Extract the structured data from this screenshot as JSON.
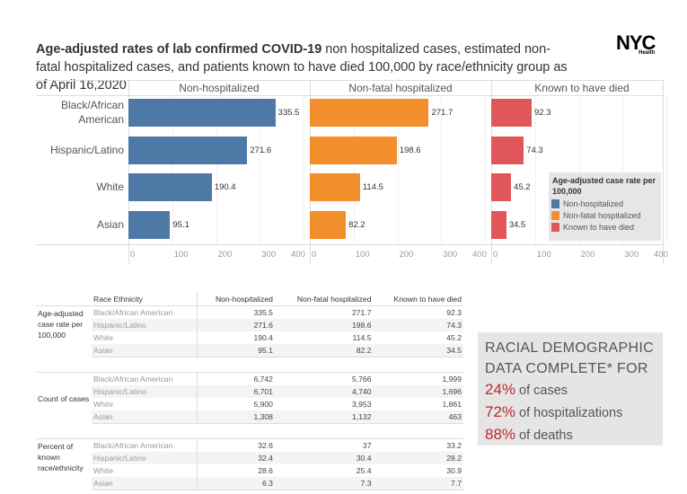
{
  "title": {
    "bold": "Age-adjusted rates of lab confirmed COVID-19",
    "rest": " non hospitalized cases, estimated non-fatal hospitalized cases, and patients known to have died 100,000 by race/ethnicity group as of April 16,2020"
  },
  "logo": {
    "text": "NYC",
    "sub": "Health"
  },
  "colors": {
    "non_hospitalized": "#4e79a7",
    "non_fatal_hospitalized": "#f28e2b",
    "known_to_have_died": "#e15759"
  },
  "chart_data": {
    "type": "bar",
    "orientation": "horizontal",
    "categories": [
      "Black/African American",
      "Hispanic/Latino",
      "White",
      "Asian"
    ],
    "series": [
      {
        "name": "Non-hospitalized",
        "values": [
          335.5,
          271.6,
          190.4,
          95.1
        ]
      },
      {
        "name": "Non-fatal hospitalized",
        "values": [
          271.7,
          198.6,
          114.5,
          82.2
        ]
      },
      {
        "name": "Known to have died",
        "values": [
          92.3,
          74.3,
          45.2,
          34.5
        ]
      }
    ],
    "xlim": [
      0,
      400
    ],
    "ticks": [
      "0",
      "100",
      "200",
      "300",
      "400"
    ],
    "legend": {
      "title": "Age-adjusted case rate per 100,000",
      "placement": "right",
      "entries": [
        "Non-hospitalized",
        "Non-fatal hospitalized",
        "Known to have died"
      ]
    }
  },
  "table": {
    "headers": [
      "Race Ethnicity",
      "Non-hospitalized",
      "Non-fatal hospitalized",
      "Known to have died"
    ],
    "groups": [
      {
        "label": "Age-adjusted case rate per 100,000",
        "rows": [
          [
            "Black/African American",
            "335.5",
            "271.7",
            "92.3"
          ],
          [
            "Hispanic/Latino",
            "271.6",
            "198.6",
            "74.3"
          ],
          [
            "White",
            "190.4",
            "114.5",
            "45.2"
          ],
          [
            "Asian",
            "95.1",
            "82.2",
            "34.5"
          ]
        ]
      },
      {
        "label": "Count of cases",
        "rows": [
          [
            "Black/African American",
            "6,742",
            "5,766",
            "1,999"
          ],
          [
            "Hispanic/Latino",
            "6,701",
            "4,740",
            "1,696"
          ],
          [
            "White",
            "5,900",
            "3,953",
            "1,861"
          ],
          [
            "Asian",
            "1,308",
            "1,132",
            "463"
          ]
        ]
      },
      {
        "label": "Percent of known race/ethnicity",
        "rows": [
          [
            "Black/African American",
            "32.6",
            "37",
            "33.2"
          ],
          [
            "Hispanic/Latino",
            "32.4",
            "30.4",
            "28.2"
          ],
          [
            "White",
            "28.6",
            "25.4",
            "30.9"
          ],
          [
            "Asian",
            "6.3",
            "7.3",
            "7.7"
          ]
        ]
      }
    ]
  },
  "box": {
    "heading1": "RACIAL DEMOGRAPHIC",
    "heading2": "DATA COMPLETE* FOR",
    "lines": [
      {
        "pct": "24%",
        "text": " of cases"
      },
      {
        "pct": "72%",
        "text": " of hospitalizations"
      },
      {
        "pct": "88%",
        "text": " of deaths"
      }
    ]
  }
}
